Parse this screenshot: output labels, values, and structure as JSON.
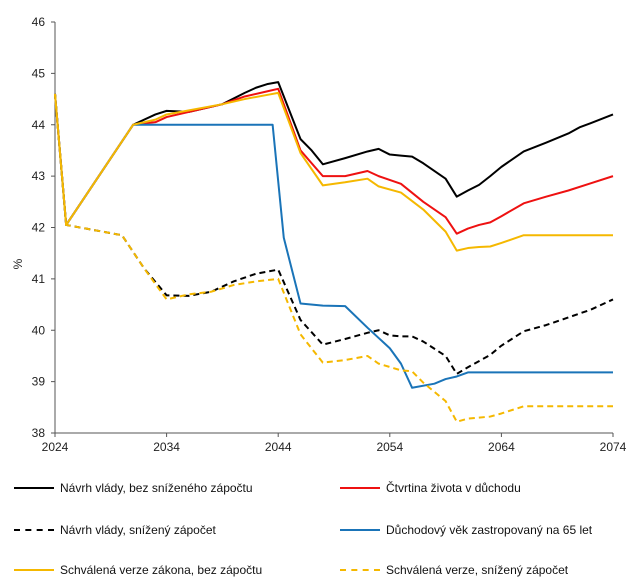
{
  "chart_data": {
    "type": "line",
    "title": "",
    "xlabel": "",
    "ylabel": "%",
    "xlim": [
      2024,
      2074
    ],
    "ylim": [
      38,
      46
    ],
    "x_ticks": [
      "2024",
      "2034",
      "2044",
      "2054",
      "2064",
      "2074"
    ],
    "y_ticks": [
      "38",
      "39",
      "40",
      "41",
      "42",
      "43",
      "44",
      "45",
      "46"
    ],
    "grid": false,
    "legend_position": "bottom",
    "series": [
      {
        "name": "Návrh vlády, bez sníženého zápočtu",
        "color": "#000000",
        "dash": "solid",
        "points": [
          [
            2024,
            44.6
          ],
          [
            2025,
            42.05
          ],
          [
            2031,
            44.0
          ],
          [
            2033,
            44.2
          ],
          [
            2034,
            44.27
          ],
          [
            2036,
            44.25
          ],
          [
            2039,
            44.4
          ],
          [
            2041,
            44.62
          ],
          [
            2042,
            44.72
          ],
          [
            2043,
            44.79
          ],
          [
            2044,
            44.83
          ],
          [
            2046,
            43.72
          ],
          [
            2047,
            43.5
          ],
          [
            2048,
            43.23
          ],
          [
            2050,
            43.35
          ],
          [
            2052,
            43.48
          ],
          [
            2053,
            43.53
          ],
          [
            2054,
            43.42
          ],
          [
            2055,
            43.4
          ],
          [
            2056,
            43.38
          ],
          [
            2057,
            43.25
          ],
          [
            2059,
            42.95
          ],
          [
            2060,
            42.6
          ],
          [
            2061,
            42.72
          ],
          [
            2062,
            42.83
          ],
          [
            2063,
            43.0
          ],
          [
            2064,
            43.18
          ],
          [
            2066,
            43.48
          ],
          [
            2068,
            43.65
          ],
          [
            2070,
            43.83
          ],
          [
            2071,
            43.95
          ],
          [
            2072,
            44.03
          ],
          [
            2074,
            44.2
          ]
        ]
      },
      {
        "name": "Čtvrtina života v důchodu",
        "color": "#ee1111",
        "dash": "solid",
        "points": [
          [
            2024,
            44.6
          ],
          [
            2025,
            42.05
          ],
          [
            2031,
            44.0
          ],
          [
            2033,
            44.05
          ],
          [
            2034,
            44.15
          ],
          [
            2036,
            44.25
          ],
          [
            2039,
            44.4
          ],
          [
            2041,
            44.55
          ],
          [
            2043,
            44.65
          ],
          [
            2044,
            44.7
          ],
          [
            2046,
            43.5
          ],
          [
            2048,
            43.0
          ],
          [
            2050,
            43.0
          ],
          [
            2052,
            43.1
          ],
          [
            2053,
            43.0
          ],
          [
            2055,
            42.85
          ],
          [
            2057,
            42.5
          ],
          [
            2059,
            42.2
          ],
          [
            2060,
            41.88
          ],
          [
            2061,
            41.98
          ],
          [
            2062,
            42.05
          ],
          [
            2063,
            42.1
          ],
          [
            2064,
            42.22
          ],
          [
            2066,
            42.47
          ],
          [
            2068,
            42.6
          ],
          [
            2070,
            42.72
          ],
          [
            2072,
            42.86
          ],
          [
            2074,
            43.0
          ]
        ]
      },
      {
        "name": "Návrh vlády, snížený zápočet",
        "color": "#000000",
        "dash": "dashed",
        "points": [
          [
            2024,
            44.6
          ],
          [
            2025,
            42.05
          ],
          [
            2030,
            41.85
          ],
          [
            2032,
            41.2
          ],
          [
            2034,
            40.68
          ],
          [
            2036,
            40.67
          ],
          [
            2038,
            40.75
          ],
          [
            2040,
            40.95
          ],
          [
            2042,
            41.1
          ],
          [
            2044,
            41.18
          ],
          [
            2046,
            40.2
          ],
          [
            2048,
            39.72
          ],
          [
            2050,
            39.83
          ],
          [
            2052,
            39.95
          ],
          [
            2053,
            40.0
          ],
          [
            2054,
            39.9
          ],
          [
            2055,
            39.88
          ],
          [
            2056,
            39.88
          ],
          [
            2057,
            39.78
          ],
          [
            2059,
            39.5
          ],
          [
            2060,
            39.15
          ],
          [
            2061,
            39.28
          ],
          [
            2062,
            39.4
          ],
          [
            2063,
            39.52
          ],
          [
            2064,
            39.7
          ],
          [
            2066,
            39.98
          ],
          [
            2068,
            40.1
          ],
          [
            2070,
            40.25
          ],
          [
            2072,
            40.4
          ],
          [
            2074,
            40.6
          ]
        ]
      },
      {
        "name": "Důchodový věk zastropovaný na 65 let",
        "color": "#1a74b8",
        "dash": "solid",
        "points": [
          [
            2024,
            44.6
          ],
          [
            2025,
            42.05
          ],
          [
            2031,
            44.0
          ],
          [
            2043.5,
            44.0
          ],
          [
            2044.5,
            41.8
          ],
          [
            2046,
            40.52
          ],
          [
            2048,
            40.48
          ],
          [
            2050,
            40.47
          ],
          [
            2052,
            40.05
          ],
          [
            2054,
            39.65
          ],
          [
            2055,
            39.35
          ],
          [
            2056,
            38.88
          ],
          [
            2058,
            38.96
          ],
          [
            2059,
            39.05
          ],
          [
            2060,
            39.1
          ],
          [
            2061,
            39.18
          ],
          [
            2074,
            39.18
          ]
        ]
      },
      {
        "name": "Schválená verze zákona, bez zápočtu",
        "color": "#f5b800",
        "dash": "solid",
        "points": [
          [
            2024,
            44.6
          ],
          [
            2025,
            42.05
          ],
          [
            2031,
            44.0
          ],
          [
            2033,
            44.1
          ],
          [
            2034,
            44.2
          ],
          [
            2036,
            44.28
          ],
          [
            2039,
            44.4
          ],
          [
            2041,
            44.5
          ],
          [
            2043,
            44.58
          ],
          [
            2044,
            44.62
          ],
          [
            2046,
            43.45
          ],
          [
            2048,
            42.82
          ],
          [
            2050,
            42.88
          ],
          [
            2052,
            42.95
          ],
          [
            2053,
            42.8
          ],
          [
            2055,
            42.68
          ],
          [
            2057,
            42.35
          ],
          [
            2059,
            41.92
          ],
          [
            2060,
            41.55
          ],
          [
            2061,
            41.6
          ],
          [
            2062,
            41.62
          ],
          [
            2063,
            41.63
          ],
          [
            2064,
            41.7
          ],
          [
            2066,
            41.85
          ],
          [
            2074,
            41.85
          ]
        ]
      },
      {
        "name": "Schválená verze, snížený zápočet",
        "color": "#f5b800",
        "dash": "dashed",
        "points": [
          [
            2024,
            44.6
          ],
          [
            2025,
            42.05
          ],
          [
            2030,
            41.85
          ],
          [
            2032,
            41.2
          ],
          [
            2034,
            40.6
          ],
          [
            2036,
            40.7
          ],
          [
            2038,
            40.75
          ],
          [
            2040,
            40.88
          ],
          [
            2042,
            40.95
          ],
          [
            2044,
            41.0
          ],
          [
            2046,
            39.92
          ],
          [
            2048,
            39.37
          ],
          [
            2050,
            39.42
          ],
          [
            2052,
            39.5
          ],
          [
            2053,
            39.35
          ],
          [
            2055,
            39.22
          ],
          [
            2056,
            39.2
          ],
          [
            2057,
            38.98
          ],
          [
            2059,
            38.62
          ],
          [
            2060,
            38.22
          ],
          [
            2061,
            38.28
          ],
          [
            2062,
            38.3
          ],
          [
            2063,
            38.32
          ],
          [
            2064,
            38.38
          ],
          [
            2066,
            38.52
          ],
          [
            2074,
            38.52
          ]
        ]
      }
    ]
  }
}
